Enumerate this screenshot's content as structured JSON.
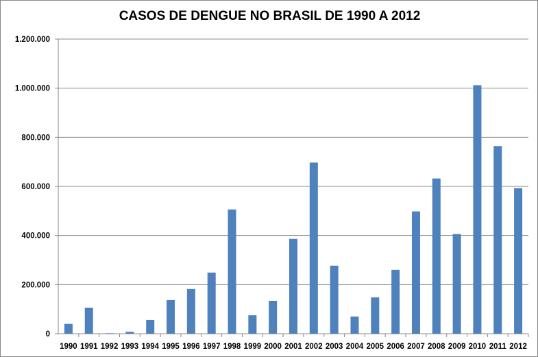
{
  "chart_data": {
    "type": "bar",
    "title": "CASOS DE DENGUE NO BRASIL DE 1990 A 2012",
    "xlabel": "",
    "ylabel": "",
    "categories": [
      "1990",
      "1991",
      "1992",
      "1993",
      "1994",
      "1995",
      "1996",
      "1997",
      "1998",
      "1999",
      "2000",
      "2001",
      "2002",
      "2003",
      "2004",
      "2005",
      "2006",
      "2007",
      "2008",
      "2009",
      "2010",
      "2011",
      "2012"
    ],
    "values": [
      40000,
      106000,
      2000,
      8000,
      56000,
      137000,
      182000,
      249000,
      506000,
      75000,
      134000,
      386000,
      697000,
      277000,
      70000,
      148000,
      260000,
      498000,
      632000,
      406000,
      1012000,
      764000,
      593000
    ],
    "ylim": [
      0,
      1200000
    ],
    "yticks": [
      "0",
      "200.000",
      "400.000",
      "600.000",
      "800.000",
      "1.000.000",
      "1.200.000"
    ],
    "grid": true,
    "legend": "none",
    "bar_color": "#4F81BD"
  }
}
